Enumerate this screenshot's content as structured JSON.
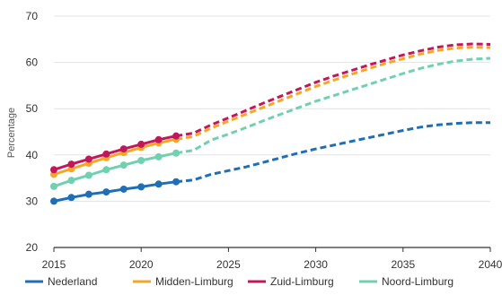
{
  "chart_data": {
    "type": "line",
    "title": "",
    "xlabel": "",
    "ylabel": "Percentage",
    "xlim": [
      2015,
      2040
    ],
    "ylim": [
      20,
      70
    ],
    "x_ticks": [
      2015,
      2020,
      2025,
      2030,
      2035,
      2040
    ],
    "y_ticks": [
      20,
      30,
      40,
      50,
      60,
      70
    ],
    "grid": "horizontal",
    "legend_position": "bottom",
    "observed_until": 2022,
    "series": [
      {
        "name": "Nederland",
        "color": "#1f6fb7",
        "observed": [
          [
            2015,
            30.0
          ],
          [
            2016,
            30.8
          ],
          [
            2017,
            31.5
          ],
          [
            2018,
            32.0
          ],
          [
            2019,
            32.6
          ],
          [
            2020,
            33.1
          ],
          [
            2021,
            33.7
          ],
          [
            2022,
            34.2
          ]
        ],
        "forecast": [
          [
            2022,
            34.2
          ],
          [
            2023,
            34.6
          ],
          [
            2024,
            35.8
          ],
          [
            2025,
            36.6
          ],
          [
            2026,
            37.4
          ],
          [
            2027,
            38.4
          ],
          [
            2028,
            39.4
          ],
          [
            2029,
            40.4
          ],
          [
            2030,
            41.3
          ],
          [
            2031,
            42.1
          ],
          [
            2032,
            42.9
          ],
          [
            2033,
            43.7
          ],
          [
            2034,
            44.5
          ],
          [
            2035,
            45.3
          ],
          [
            2036,
            46.0
          ],
          [
            2037,
            46.5
          ],
          [
            2038,
            46.8
          ],
          [
            2039,
            47.0
          ],
          [
            2040,
            47.0
          ]
        ]
      },
      {
        "name": "Midden-Limburg",
        "color": "#f5a623",
        "observed": [
          [
            2015,
            35.8
          ],
          [
            2016,
            37.0
          ],
          [
            2017,
            38.2
          ],
          [
            2018,
            39.4
          ],
          [
            2019,
            40.5
          ],
          [
            2020,
            41.6
          ],
          [
            2021,
            42.6
          ],
          [
            2022,
            43.4
          ]
        ],
        "forecast": [
          [
            2022,
            43.4
          ],
          [
            2023,
            44.0
          ],
          [
            2024,
            45.8
          ],
          [
            2025,
            47.3
          ],
          [
            2026,
            48.8
          ],
          [
            2027,
            50.3
          ],
          [
            2028,
            51.8
          ],
          [
            2029,
            53.3
          ],
          [
            2030,
            54.8
          ],
          [
            2031,
            56.1
          ],
          [
            2032,
            57.4
          ],
          [
            2033,
            58.6
          ],
          [
            2034,
            59.8
          ],
          [
            2035,
            60.8
          ],
          [
            2036,
            61.8
          ],
          [
            2037,
            62.6
          ],
          [
            2038,
            63.1
          ],
          [
            2039,
            63.3
          ],
          [
            2040,
            63.2
          ]
        ]
      },
      {
        "name": "Zuid-Limburg",
        "color": "#c2185b",
        "observed": [
          [
            2015,
            36.8
          ],
          [
            2016,
            38.0
          ],
          [
            2017,
            39.1
          ],
          [
            2018,
            40.2
          ],
          [
            2019,
            41.3
          ],
          [
            2020,
            42.3
          ],
          [
            2021,
            43.3
          ],
          [
            2022,
            44.1
          ]
        ],
        "forecast": [
          [
            2022,
            44.1
          ],
          [
            2023,
            44.7
          ],
          [
            2024,
            46.5
          ],
          [
            2025,
            48.0
          ],
          [
            2026,
            49.6
          ],
          [
            2027,
            51.2
          ],
          [
            2028,
            52.7
          ],
          [
            2029,
            54.2
          ],
          [
            2030,
            55.7
          ],
          [
            2031,
            57.0
          ],
          [
            2032,
            58.2
          ],
          [
            2033,
            59.4
          ],
          [
            2034,
            60.5
          ],
          [
            2035,
            61.6
          ],
          [
            2036,
            62.5
          ],
          [
            2037,
            63.3
          ],
          [
            2038,
            63.8
          ],
          [
            2039,
            64.0
          ],
          [
            2040,
            63.9
          ]
        ]
      },
      {
        "name": "Noord-Limburg",
        "color": "#6fd1b0",
        "observed": [
          [
            2015,
            33.2
          ],
          [
            2016,
            34.5
          ],
          [
            2017,
            35.6
          ],
          [
            2018,
            36.8
          ],
          [
            2019,
            37.8
          ],
          [
            2020,
            38.8
          ],
          [
            2021,
            39.6
          ],
          [
            2022,
            40.4
          ]
        ],
        "forecast": [
          [
            2022,
            40.4
          ],
          [
            2023,
            41.0
          ],
          [
            2024,
            43.2
          ],
          [
            2025,
            44.5
          ],
          [
            2026,
            45.9
          ],
          [
            2027,
            47.4
          ],
          [
            2028,
            48.8
          ],
          [
            2029,
            50.2
          ],
          [
            2030,
            51.6
          ],
          [
            2031,
            52.8
          ],
          [
            2032,
            54.0
          ],
          [
            2033,
            55.2
          ],
          [
            2034,
            56.4
          ],
          [
            2035,
            57.6
          ],
          [
            2036,
            58.7
          ],
          [
            2037,
            59.6
          ],
          [
            2038,
            60.3
          ],
          [
            2039,
            60.7
          ],
          [
            2040,
            60.9
          ]
        ]
      }
    ]
  }
}
